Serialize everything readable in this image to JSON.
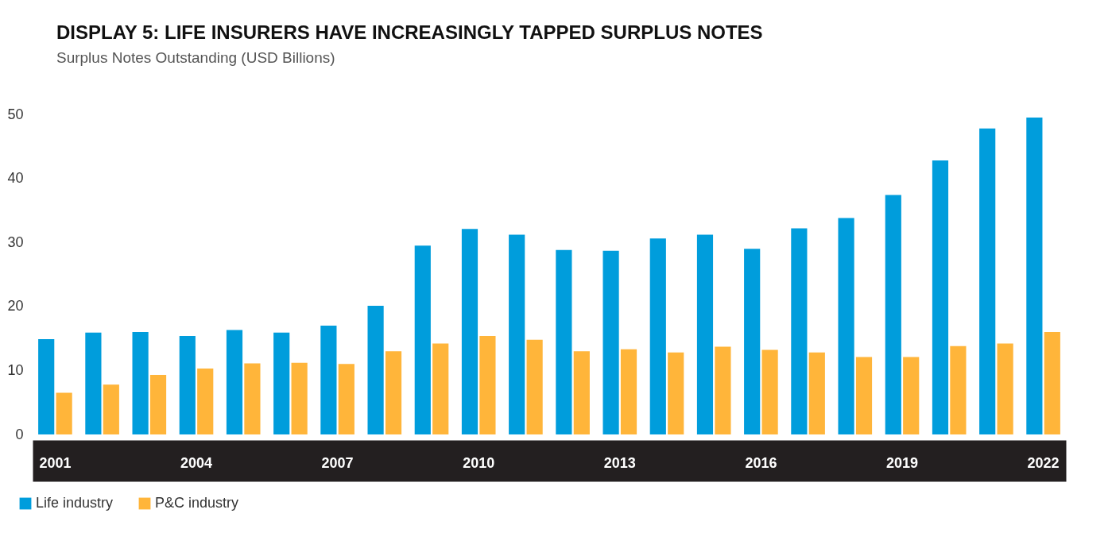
{
  "chart_data": {
    "type": "bar",
    "title": "DISPLAY 5: LIFE INSURERS HAVE INCREASINGLY TAPPED SURPLUS NOTES",
    "subtitle": "Surplus Notes Outstanding (USD Billions)",
    "categories": [
      "2001",
      null,
      null,
      "2004",
      null,
      null,
      "2007",
      null,
      null,
      "2010",
      null,
      null,
      "2013",
      null,
      null,
      "2016",
      null,
      null,
      "2019",
      null,
      null,
      "2022"
    ],
    "series": [
      {
        "name": "Life industry",
        "color": "#009ddc",
        "values": [
          14.9,
          15.9,
          16.0,
          15.4,
          16.3,
          15.9,
          17.0,
          20.1,
          29.5,
          32.1,
          31.2,
          28.8,
          28.7,
          30.6,
          31.2,
          29.0,
          32.2,
          33.8,
          37.4,
          42.8,
          47.8,
          49.5
        ]
      },
      {
        "name": "P&C industry",
        "color": "#ffb53a",
        "values": [
          6.5,
          7.8,
          9.3,
          10.3,
          11.1,
          11.2,
          11.0,
          13.0,
          14.2,
          15.4,
          14.8,
          13.0,
          13.3,
          12.8,
          13.7,
          13.2,
          12.8,
          12.1,
          12.1,
          13.8,
          14.2,
          16.0
        ]
      }
    ],
    "ylim": [
      0,
      50
    ],
    "yticks": [
      0,
      10,
      20,
      30,
      40,
      50
    ],
    "grid": false,
    "legend": "bottom left"
  }
}
